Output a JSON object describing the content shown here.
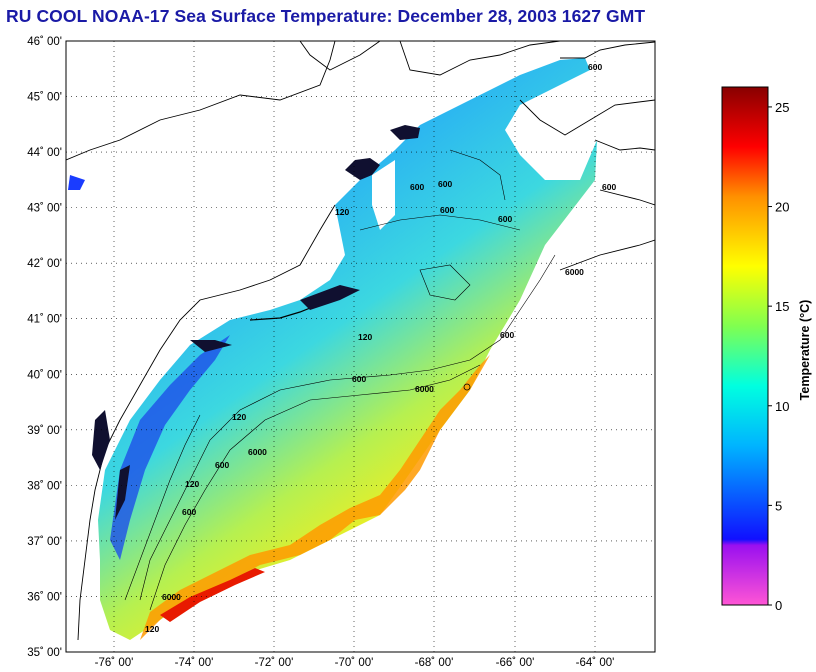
{
  "title": "RU COOL  NOAA-17  Sea Surface Temperature:  December 28, 2003 1627 GMT",
  "map": {
    "lat_labels": [
      "46˚ 00'",
      "45˚ 00'",
      "44˚ 00'",
      "43˚ 00'",
      "42˚ 00'",
      "41˚ 00'",
      "40˚ 00'",
      "39˚ 00'",
      "38˚ 00'",
      "37˚ 00'",
      "36˚ 00'",
      "35˚ 00'"
    ],
    "lon_labels": [
      "-76˚ 00'",
      "-74˚ 00'",
      "-72˚ 00'",
      "-70˚ 00'",
      "-68˚ 00'",
      "-66˚ 00'",
      "-64˚ 00'"
    ],
    "contour_labels": [
      "600",
      "600",
      "600",
      "120",
      "600",
      "600",
      "600",
      "6000",
      "600",
      "120",
      "6000",
      "600",
      "120",
      "6000",
      "600",
      "120",
      "600",
      "6000",
      "120"
    ],
    "colors": {
      "land_outline": "#000000",
      "grid": "#000000"
    }
  },
  "colorbar": {
    "title": "Temperature (°C)",
    "tick_labels": [
      "25",
      "20",
      "15",
      "10",
      "5",
      "0"
    ],
    "range": [
      0,
      26
    ],
    "stops": [
      {
        "t": 0,
        "color": "#ff55d5"
      },
      {
        "t": 3,
        "color": "#9a10f0"
      },
      {
        "t": 3.3,
        "color": "#1010ff"
      },
      {
        "t": 8,
        "color": "#00b4ff"
      },
      {
        "t": 11,
        "color": "#00ffe0"
      },
      {
        "t": 14,
        "color": "#80ff50"
      },
      {
        "t": 17,
        "color": "#ffff00"
      },
      {
        "t": 20.5,
        "color": "#ff9000"
      },
      {
        "t": 23,
        "color": "#ff0000"
      },
      {
        "t": 26,
        "color": "#880000"
      }
    ]
  }
}
